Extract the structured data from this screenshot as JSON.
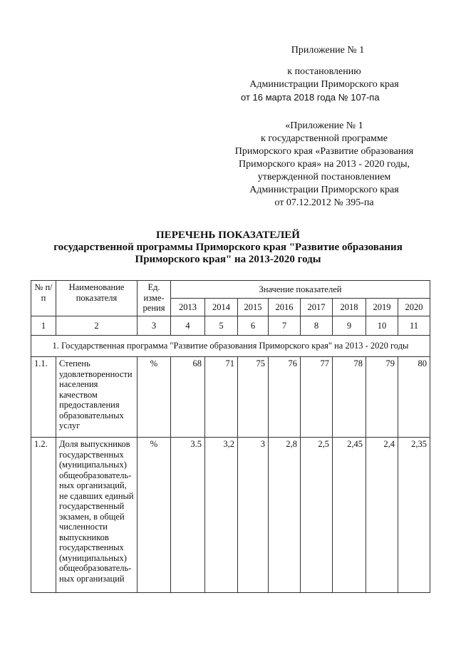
{
  "stamp": {
    "line1": "Приложение № 1",
    "line2": "к постановлению",
    "line3": "Администрации Приморского края",
    "line4": "от 16 марта 2018 года № 107-па"
  },
  "appendix": {
    "lines": [
      "«Приложение № 1",
      "к государственной программе",
      "Приморского края «Развитие образования",
      "Приморского края» на 2013 - 2020 годы,",
      "утвержденной постановлением",
      "Администрации Приморского края",
      "от 07.12.2012 № 395-па"
    ]
  },
  "title": {
    "line1": "ПЕРЕЧЕНЬ ПОКАЗАТЕЛЕЙ",
    "line2": "государственной программы Приморского края \"Развитие образования",
    "line3": "Приморского края\" на 2013-2020 годы"
  },
  "table": {
    "headers": {
      "num": "№ п/п",
      "name": "Наименование показателя",
      "unit": "Ед. изме-рения",
      "values": "Значение показателей",
      "years": [
        "2013",
        "2014",
        "2015",
        "2016",
        "2017",
        "2018",
        "2019",
        "2020"
      ]
    },
    "col_numbers": [
      "1",
      "2",
      "3",
      "4",
      "5",
      "6",
      "7",
      "8",
      "9",
      "10",
      "11"
    ],
    "section": "1. Государственная программа \"Развитие образования Приморского края\" на 2013 - 2020 годы",
    "rows": [
      {
        "num": "1.1.",
        "name": "Степень удовлетворенности населения качеством предоставления образовательных услуг",
        "unit": "%",
        "values": [
          "68",
          "71",
          "75",
          "76",
          "77",
          "78",
          "79",
          "80"
        ]
      },
      {
        "num": "1.2.",
        "name": "Доля выпускников государственных (муниципальных) общеобразователь-ных организаций, не сдавших единый государственный экзамен, в общей численности выпускников государственных (муниципальных) общеобразователь-ных организаций",
        "unit": "%",
        "values": [
          "3.5",
          "3,2",
          "3",
          "2,8",
          "2,5",
          "2,45",
          "2,4",
          "2,35"
        ]
      }
    ]
  }
}
